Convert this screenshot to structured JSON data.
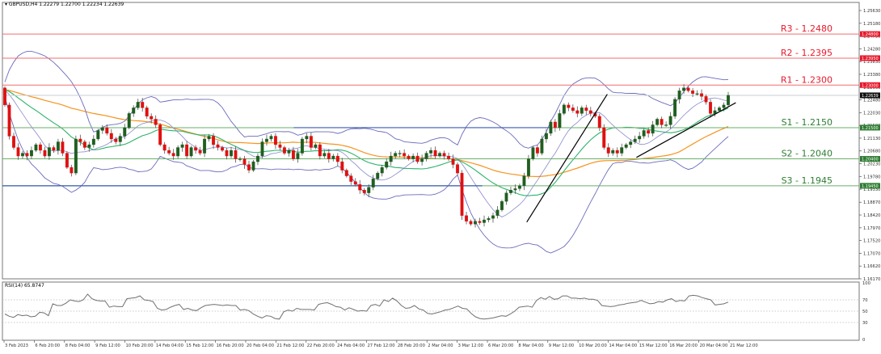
{
  "header": {
    "symbol": "GBPUSD,H4",
    "ohlc": "1.22279 1.22700 1.22234 1.22639",
    "full": "▾ GBPUSD,H4  1.22279 1.22700 1.22234 1.22639"
  },
  "rsi_header": "RSI(14) 65.8747",
  "colors": {
    "bull": "#1f5e1f",
    "bear": "#e01010",
    "wick": "#555555",
    "bollinger": "#6b6bbd",
    "ma_fast": "#2db36a",
    "ma_slow": "#f7931e",
    "resistance": "#f26d6d",
    "support": "#6aaf6a",
    "range_line": "#3a5bb0",
    "trendline": "#000000",
    "rsi_line": "#707070",
    "frame": "#777777"
  },
  "chart_data": [
    {
      "type": "candlestick",
      "title": "GBPUSD,H4",
      "ohlc_current": {
        "open": 1.22279,
        "high": 1.227,
        "low": 1.22234,
        "close": 1.22639
      },
      "y_axis": {
        "ticks": [
          "1.25630",
          "1.25180",
          "1.24730",
          "1.24280",
          "1.23830",
          "1.23380",
          "1.22930",
          "1.22480",
          "1.22030",
          "1.21580",
          "1.21130",
          "1.20680",
          "1.20230",
          "1.19780",
          "1.19330",
          "1.18870",
          "1.18420",
          "1.17970",
          "1.17520",
          "1.17070",
          "1.16620",
          "1.16170"
        ],
        "range": [
          1.1617,
          1.2563
        ]
      },
      "x_axis": {
        "ticks": [
          "3 Feb 2023",
          "6 Feb 20:00",
          "8 Feb 04:00",
          "9 Feb 12:00",
          "10 Feb 20:00",
          "14 Feb 04:00",
          "15 Feb 12:00",
          "16 Feb 20:00",
          "20 Feb 04:00",
          "21 Feb 12:00",
          "22 Feb 20:00",
          "24 Feb 04:00",
          "27 Feb 12:00",
          "28 Feb 20:00",
          "2 Mar 04:00",
          "3 Mar 12:00",
          "6 Mar 20:00",
          "8 Mar 04:00",
          "9 Mar 12:00",
          "10 Mar 20:00",
          "14 Mar 04:00",
          "15 Mar 12:00",
          "16 Mar 20:00",
          "20 Mar 04:00",
          "21 Mar 12:00"
        ]
      },
      "levels": [
        {
          "name": "R3",
          "label": "R3 - 1.2480",
          "value": 1.248,
          "tag": "1.24800",
          "kind": "resistance"
        },
        {
          "name": "R2",
          "label": "R2 - 1.2395",
          "value": 1.2395,
          "tag": "1.23950",
          "kind": "resistance"
        },
        {
          "name": "R1",
          "label": "R1 - 1.2300",
          "value": 1.23,
          "tag": "1.23000",
          "kind": "resistance"
        },
        {
          "name": "S1",
          "label": "S1 - 1.2150",
          "value": 1.215,
          "tag": "1.21500",
          "kind": "support"
        },
        {
          "name": "S2",
          "label": "S2 - 1.2040",
          "value": 1.204,
          "tag": "1.20400",
          "kind": "support"
        },
        {
          "name": "S3",
          "label": "S3 - 1.1945",
          "value": 1.1945,
          "tag": "1.19450",
          "kind": "support"
        }
      ],
      "current_price": {
        "value": 1.22639,
        "tag": "1.22639"
      },
      "range_lines": [
        {
          "value": 1.215,
          "x_from": 0.34,
          "x_to": 0.64
        },
        {
          "value": 1.1945,
          "x_from": 0.0,
          "x_to": 0.56
        }
      ],
      "trendlines": [
        {
          "from": [
            0.612,
            1.1817
          ],
          "to": [
            0.706,
            1.2268
          ]
        },
        {
          "from": [
            0.74,
            1.2045
          ],
          "to": [
            0.856,
            1.2238
          ]
        }
      ],
      "indicators": [
        "Bollinger Bands",
        "Moving Average (fast, green)",
        "Moving Average (slow, orange)"
      ],
      "candles_close_path": [
        1.223,
        1.212,
        1.208,
        1.205,
        1.206,
        1.205,
        1.207,
        1.209,
        1.207,
        1.205,
        1.208,
        1.207,
        1.21,
        1.206,
        1.201,
        1.199,
        1.211,
        1.21,
        1.208,
        1.209,
        1.211,
        1.214,
        1.215,
        1.213,
        1.211,
        1.21,
        1.212,
        1.215,
        1.22,
        1.222,
        1.224,
        1.222,
        1.219,
        1.218,
        1.216,
        1.209,
        1.207,
        1.206,
        1.205,
        1.208,
        1.209,
        1.205,
        1.208,
        1.207,
        1.206,
        1.211,
        1.212,
        1.209,
        1.208,
        1.207,
        1.205,
        1.207,
        1.204,
        1.204,
        1.202,
        1.2,
        1.203,
        1.205,
        1.21,
        1.211,
        1.212,
        1.209,
        1.208,
        1.206,
        1.207,
        1.204,
        1.206,
        1.211,
        1.212,
        1.208,
        1.209,
        1.205,
        1.206,
        1.204,
        1.205,
        1.203,
        1.2,
        1.198,
        1.196,
        1.195,
        1.193,
        1.192,
        1.194,
        1.197,
        1.199,
        1.201,
        1.203,
        1.205,
        1.206,
        1.206,
        1.205,
        1.204,
        1.205,
        1.203,
        1.204,
        1.206,
        1.207,
        1.205,
        1.206,
        1.205,
        1.204,
        1.202,
        1.199,
        1.184,
        1.182,
        1.181,
        1.182,
        1.1815,
        1.1825,
        1.183,
        1.184,
        1.186,
        1.189,
        1.192,
        1.193,
        1.1935,
        1.1945,
        1.198,
        1.204,
        1.208,
        1.206,
        1.211,
        1.213,
        1.217,
        1.215,
        1.22,
        1.223,
        1.222,
        1.221,
        1.22,
        1.222,
        1.221,
        1.22,
        1.219,
        1.215,
        1.208,
        1.206,
        1.207,
        1.206,
        1.208,
        1.209,
        1.21,
        1.211,
        1.212,
        1.214,
        1.213,
        1.216,
        1.218,
        1.216,
        1.216,
        1.219,
        1.225,
        1.228,
        1.229,
        1.228,
        1.227,
        1.227,
        1.226,
        1.224,
        1.22,
        1.221,
        1.222,
        1.223,
        1.2264
      ],
      "rsi": {
        "title": "RSI(14) 65.8747",
        "value": 65.8747,
        "levels": [
          70,
          50,
          30
        ],
        "ticks": [
          "100",
          "70",
          "50",
          "30",
          "0"
        ],
        "series": [
          45,
          41,
          39,
          44,
          42,
          43,
          40,
          41,
          48,
          47,
          42,
          63,
          60,
          60,
          64,
          70,
          68,
          67,
          70,
          80,
          72,
          69,
          68,
          68,
          57,
          59,
          58,
          58,
          72,
          73,
          74,
          77,
          70,
          69,
          67,
          55,
          52,
          53,
          57,
          60,
          62,
          53,
          55,
          52,
          51,
          56,
          60,
          61,
          62,
          61,
          60,
          61,
          60,
          60,
          52,
          53,
          51,
          45,
          41,
          38,
          42,
          41,
          37,
          36,
          49,
          52,
          50,
          55,
          53,
          53,
          53,
          52,
          62,
          64,
          65,
          62,
          58,
          57,
          52,
          56,
          53,
          50,
          51,
          50,
          60,
          62,
          59,
          70,
          67,
          73,
          68,
          60,
          55,
          56,
          60,
          54,
          52,
          46,
          45,
          47,
          49,
          52,
          53,
          56,
          59,
          55,
          54,
          46,
          40,
          37,
          36,
          37,
          38,
          40,
          42,
          41,
          45,
          50,
          57,
          58,
          59,
          57,
          69,
          74,
          71,
          76,
          71,
          72,
          77,
          77,
          73,
          73,
          72,
          73,
          71,
          71,
          69,
          60,
          59,
          58,
          59,
          61,
          62,
          64,
          65,
          66,
          69,
          66,
          63,
          64,
          67,
          66,
          70,
          72,
          67,
          69,
          68,
          77,
          78,
          77,
          74,
          72,
          70,
          61,
          62,
          63,
          66
        ]
      }
    }
  ]
}
